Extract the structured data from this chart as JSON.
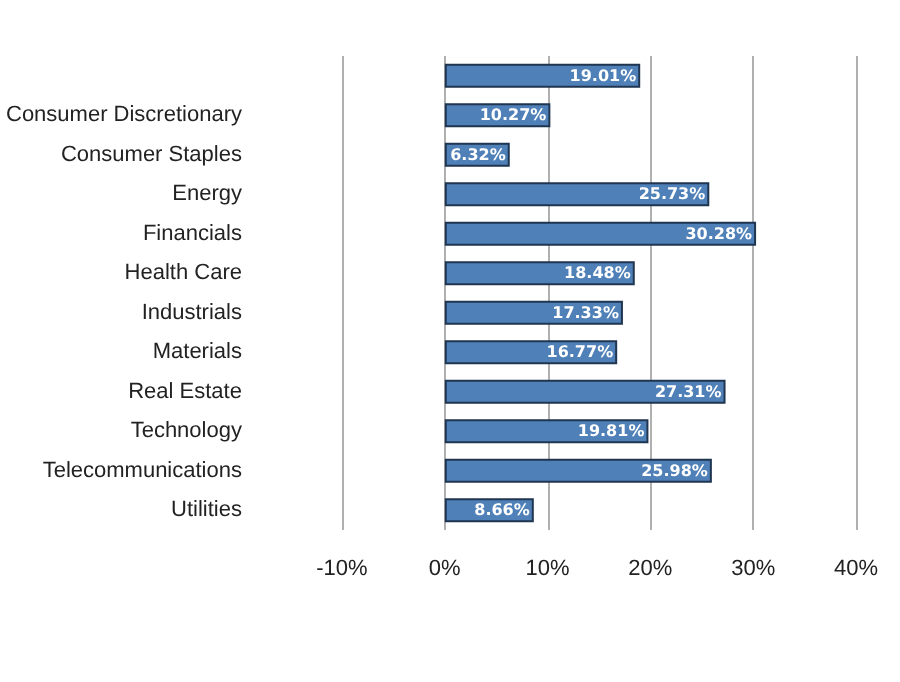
{
  "chart_data": {
    "type": "bar",
    "orientation": "horizontal",
    "categories": [
      null,
      "Consumer Discretionary",
      "Consumer Staples",
      "Energy",
      "Financials",
      "Health Care",
      "Industrials",
      "Materials",
      "Real Estate",
      "Technology",
      "Telecommunications",
      "Utilities"
    ],
    "values": [
      19.01,
      10.27,
      6.32,
      25.73,
      30.28,
      18.48,
      17.33,
      16.77,
      27.31,
      19.81,
      25.98,
      8.66
    ],
    "value_labels": [
      "19.01%",
      "10.27%",
      "6.32%",
      "25.73%",
      "30.28%",
      "18.48%",
      "17.33%",
      "16.77%",
      "27.31%",
      "19.81%",
      "25.98%",
      "8.66%"
    ],
    "color": "#4f81b8",
    "xlim": [
      -10,
      40
    ],
    "xticks": [
      {
        "value": -10,
        "label": "-10%"
      },
      {
        "value": 0,
        "label": "0%"
      },
      {
        "value": 10,
        "label": "10%"
      },
      {
        "value": 20,
        "label": "20%"
      },
      {
        "value": 30,
        "label": "30%"
      },
      {
        "value": 40,
        "label": "40%"
      }
    ],
    "grid": "x"
  }
}
